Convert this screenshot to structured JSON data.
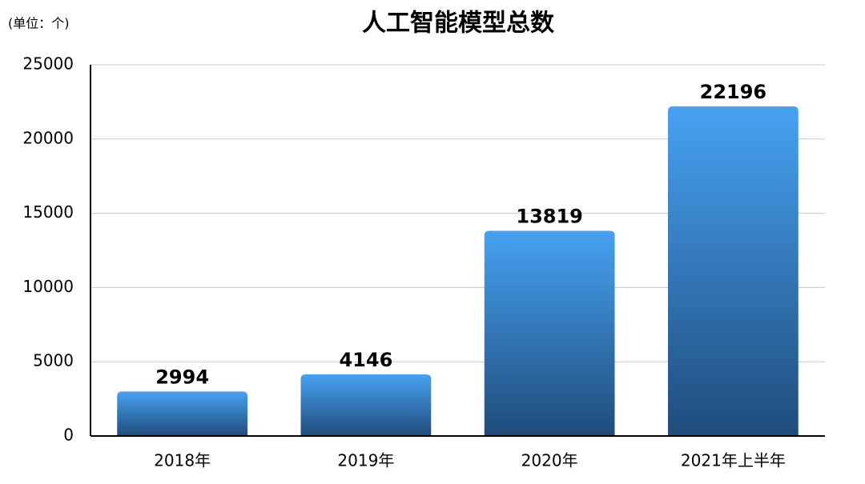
{
  "chart_data": {
    "type": "bar",
    "title": "人工智能模型总数",
    "unit_label": "(单位：个)",
    "categories": [
      "2018年",
      "2019年",
      "2020年",
      "2021年上半年"
    ],
    "values": [
      2994,
      4146,
      13819,
      22196
    ],
    "color": "#47a2f2",
    "color_bottom": "#1f4c7c",
    "ylim": [
      0,
      25000
    ],
    "yticks": [
      0,
      5000,
      10000,
      15000,
      20000,
      25000
    ],
    "grid": true
  }
}
